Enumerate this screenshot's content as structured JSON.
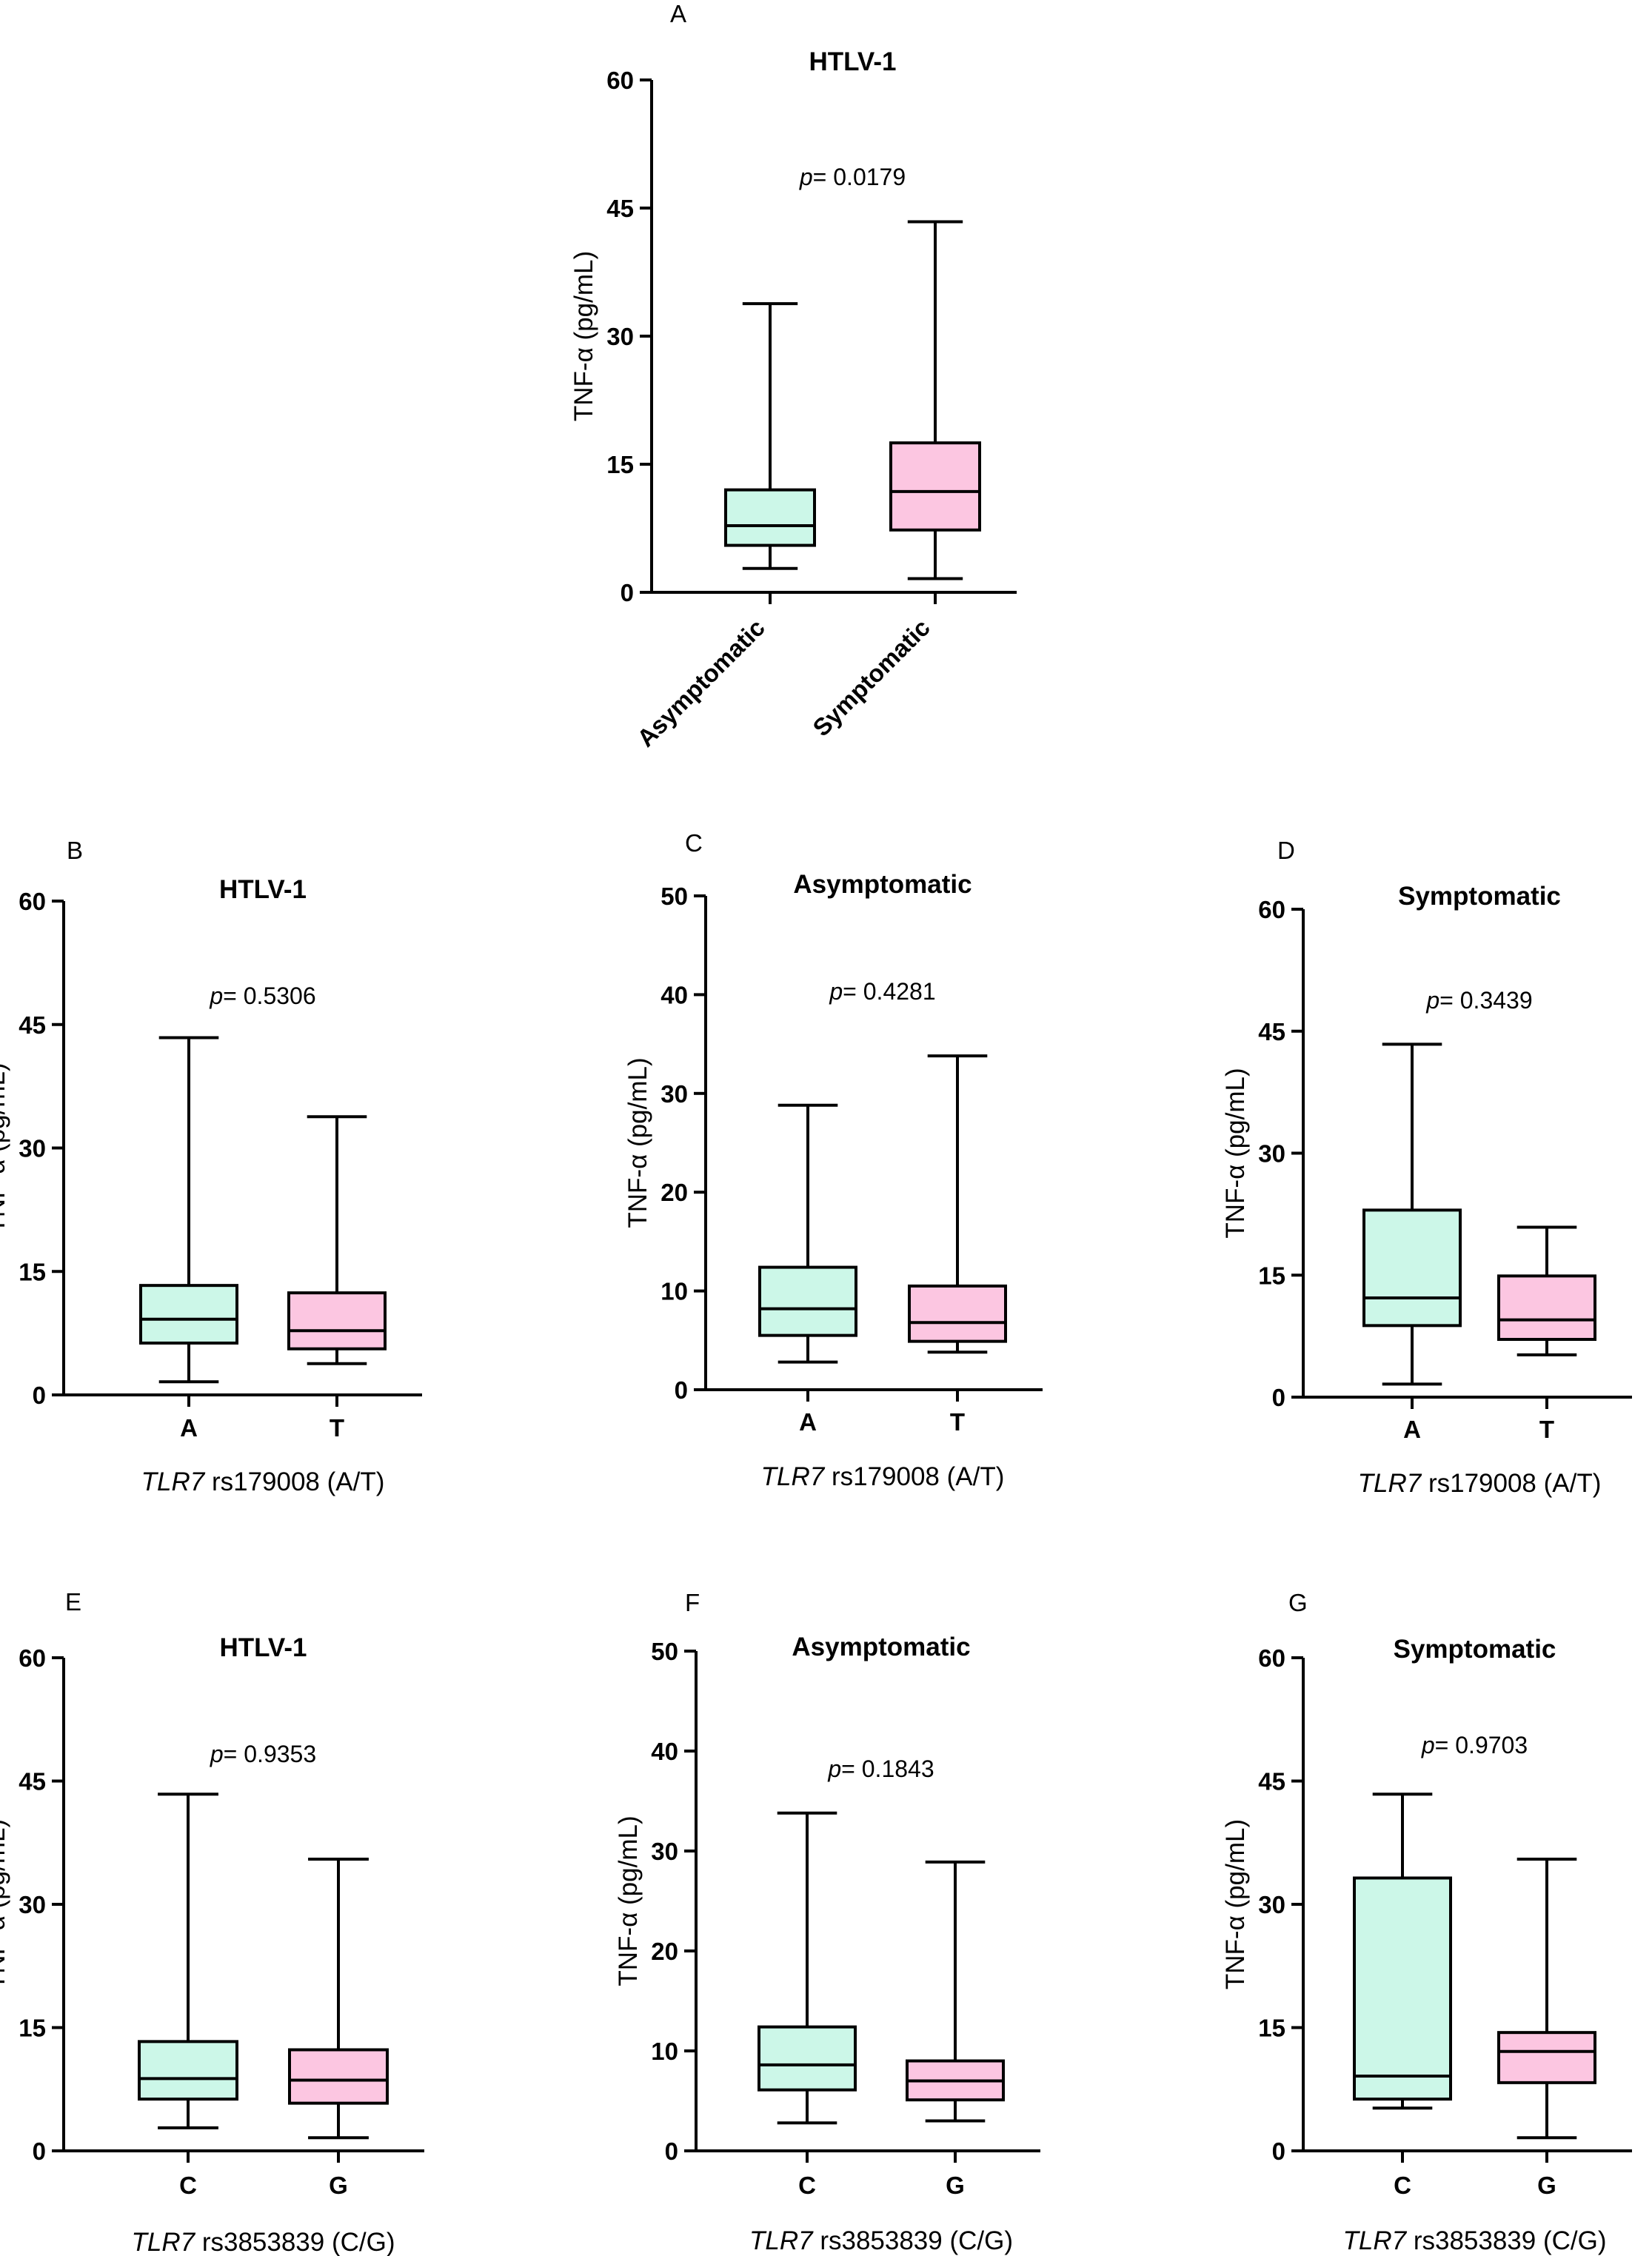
{
  "figure": {
    "y_axis_label": "TNF-α (pg/mL)",
    "p_prefix": "p",
    "colors": {
      "group1_fill": "#ccf7e8",
      "group2_fill": "#fcc6e1",
      "stroke": "#000000"
    }
  },
  "chart_data": [
    {
      "panel": "A",
      "type": "box",
      "title": "HTLV-1",
      "p_value": "= 0.0179",
      "ylim": [
        0,
        60
      ],
      "yticks": [
        0,
        15,
        30,
        45,
        60
      ],
      "xlabel_italic": "",
      "xlabel": "",
      "categories": [
        "Asymptomatic",
        "Symptomatic"
      ],
      "boxes": [
        {
          "min": 2.8,
          "q1": 5.5,
          "median": 7.8,
          "q3": 12.0,
          "max": 33.8
        },
        {
          "min": 1.6,
          "q1": 7.3,
          "median": 11.8,
          "q3": 17.5,
          "max": 43.4
        }
      ]
    },
    {
      "panel": "B",
      "type": "box",
      "title": "HTLV-1",
      "p_value": "= 0.5306",
      "ylim": [
        0,
        60
      ],
      "yticks": [
        0,
        15,
        30,
        45,
        60
      ],
      "xlabel_italic": "TLR7",
      "xlabel": " rs179008 (A/T)",
      "categories": [
        "A",
        "T"
      ],
      "boxes": [
        {
          "min": 1.6,
          "q1": 6.3,
          "median": 9.2,
          "q3": 13.3,
          "max": 43.4
        },
        {
          "min": 3.8,
          "q1": 5.6,
          "median": 7.8,
          "q3": 12.4,
          "max": 33.8
        }
      ]
    },
    {
      "panel": "C",
      "type": "box",
      "title": "Asymptomatic",
      "p_value": "= 0.4281",
      "ylim": [
        0,
        50
      ],
      "yticks": [
        0,
        10,
        20,
        30,
        40,
        50
      ],
      "xlabel_italic": "TLR7",
      "xlabel": " rs179008 (A/T)",
      "categories": [
        "A",
        "T"
      ],
      "boxes": [
        {
          "min": 2.8,
          "q1": 5.5,
          "median": 8.2,
          "q3": 12.4,
          "max": 28.8
        },
        {
          "min": 3.8,
          "q1": 4.9,
          "median": 6.8,
          "q3": 10.5,
          "max": 33.8
        }
      ]
    },
    {
      "panel": "D",
      "type": "box",
      "title": "Symptomatic",
      "p_value": "= 0.3439",
      "ylim": [
        0,
        60
      ],
      "yticks": [
        0,
        15,
        30,
        45,
        60
      ],
      "xlabel_italic": "TLR7",
      "xlabel": " rs179008 (A/T)",
      "categories": [
        "A",
        "T"
      ],
      "boxes": [
        {
          "min": 1.6,
          "q1": 8.8,
          "median": 12.2,
          "q3": 23.0,
          "max": 43.4
        },
        {
          "min": 5.2,
          "q1": 7.1,
          "median": 9.5,
          "q3": 14.9,
          "max": 20.9
        }
      ]
    },
    {
      "panel": "E",
      "type": "box",
      "title": "HTLV-1",
      "p_value": "= 0.9353",
      "ylim": [
        0,
        60
      ],
      "yticks": [
        0,
        15,
        30,
        45,
        60
      ],
      "xlabel_italic": "TLR7",
      "xlabel": " rs3853839 (C/G)",
      "categories": [
        "C",
        "G"
      ],
      "boxes": [
        {
          "min": 2.8,
          "q1": 6.3,
          "median": 8.8,
          "q3": 13.3,
          "max": 43.4
        },
        {
          "min": 1.6,
          "q1": 5.8,
          "median": 8.6,
          "q3": 12.3,
          "max": 35.5
        }
      ]
    },
    {
      "panel": "F",
      "type": "box",
      "title": "Asymptomatic",
      "p_value": "= 0.1843",
      "ylim": [
        0,
        50
      ],
      "yticks": [
        0,
        10,
        20,
        30,
        40,
        50
      ],
      "xlabel_italic": "TLR7",
      "xlabel": " rs3853839 (C/G)",
      "categories": [
        "C",
        "G"
      ],
      "boxes": [
        {
          "min": 2.8,
          "q1": 6.1,
          "median": 8.6,
          "q3": 12.4,
          "max": 33.8
        },
        {
          "min": 3.0,
          "q1": 5.1,
          "median": 7.0,
          "q3": 9.0,
          "max": 28.9
        }
      ]
    },
    {
      "panel": "G",
      "type": "box",
      "title": "Symptomatic",
      "p_value": "= 0.9703",
      "ylim": [
        0,
        60
      ],
      "yticks": [
        0,
        15,
        30,
        45,
        60
      ],
      "xlabel_italic": "TLR7",
      "xlabel": " rs3853839 (C/G)",
      "categories": [
        "C",
        "G"
      ],
      "boxes": [
        {
          "min": 5.2,
          "q1": 6.3,
          "median": 9.1,
          "q3": 33.2,
          "max": 43.4
        },
        {
          "min": 1.6,
          "q1": 8.3,
          "median": 12.1,
          "q3": 14.4,
          "max": 35.5
        }
      ]
    }
  ]
}
